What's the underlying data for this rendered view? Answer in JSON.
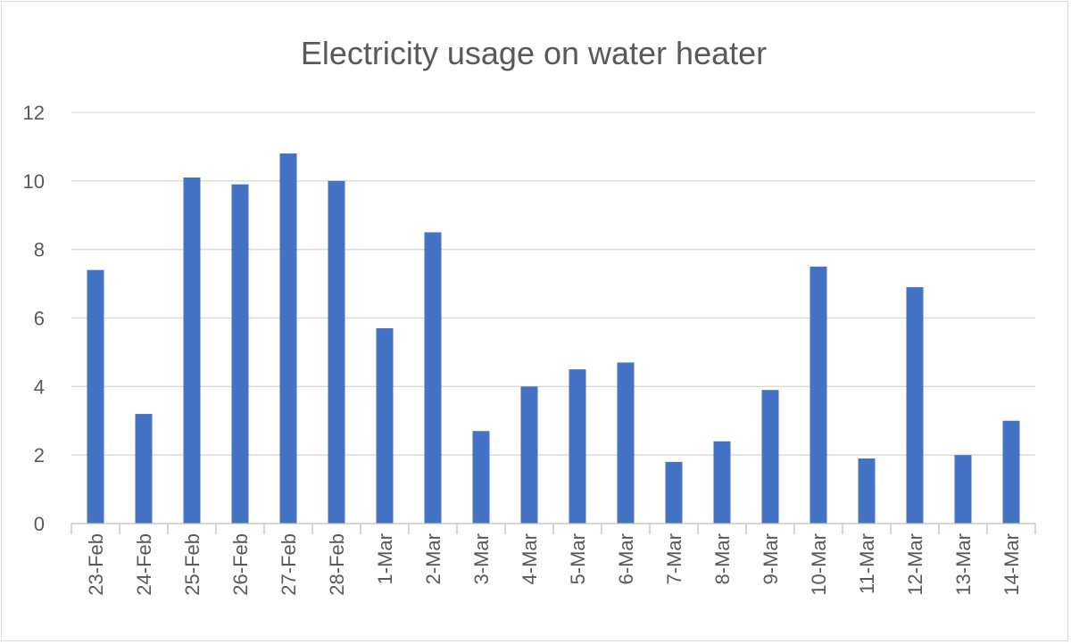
{
  "chart_data": {
    "type": "bar",
    "title": "Electricity usage on water heater",
    "xlabel": "",
    "ylabel": "",
    "ylim": [
      0,
      12
    ],
    "yticks": [
      0,
      2,
      4,
      6,
      8,
      10,
      12
    ],
    "grid": true,
    "legend": "none",
    "bar_color": "#4472C4",
    "categories": [
      "23-Feb",
      "24-Feb",
      "25-Feb",
      "26-Feb",
      "27-Feb",
      "28-Feb",
      "1-Mar",
      "2-Mar",
      "3-Mar",
      "4-Mar",
      "5-Mar",
      "6-Mar",
      "7-Mar",
      "8-Mar",
      "9-Mar",
      "10-Mar",
      "11-Mar",
      "12-Mar",
      "13-Mar",
      "14-Mar"
    ],
    "values": [
      7.4,
      3.2,
      10.1,
      9.9,
      10.8,
      10.0,
      5.7,
      8.5,
      2.7,
      4.0,
      4.5,
      4.7,
      1.8,
      2.4,
      3.9,
      7.5,
      1.9,
      6.9,
      2.0,
      3.0
    ]
  }
}
